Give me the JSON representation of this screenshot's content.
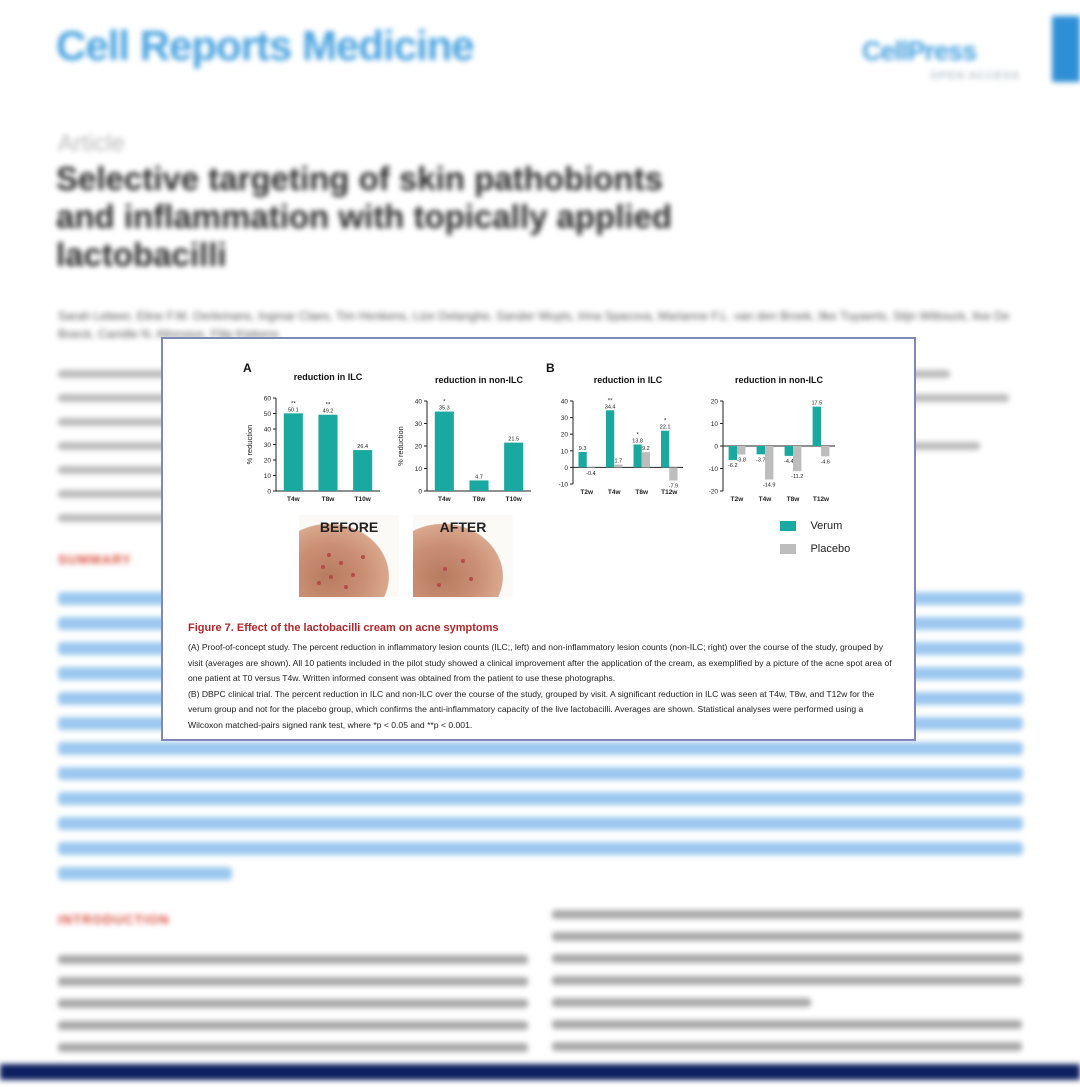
{
  "header": {
    "journal": "Cell Reports Medicine",
    "publisher": "CellPress",
    "publisher_sub": "OPEN ACCESS"
  },
  "article": {
    "type_label": "Article",
    "title": "Selective targeting of skin pathobionts and inflammation with topically applied lactobacilli",
    "authors": "Sarah Lebeer, Eline F.M. Oerlemans, Ingmar Claes, Tim Henkens, Lize Delanghe, Sander Wuyts, Irina Spacova, Marianne F.L. van den Broek, Ilke Tuyaerts, Stijn Wittouck, Ilse De Boeck, Camille N. Allonsius, Filip Kiekens",
    "summary_heading": "SUMMARY",
    "intro_heading": "INTRODUCTION"
  },
  "figure": {
    "panel_a": "A",
    "panel_b": "B",
    "photo_before": "BEFORE",
    "photo_after": "AFTER",
    "caption_title": "Figure 7. Effect of the lactobacilli cream on acne symptoms",
    "caption_a": "(A) Proof-of-concept study. The percent reduction in inflammatory lesion counts (ILC;, left) and non-inflammatory lesion counts (non-ILC; right) over the course of the study, grouped by visit (averages are shown). All 10 patients included in the pilot study showed a clinical improvement after the application of the cream, as exemplified by a picture of the acne spot area of one patient at T0 versus T4w. Written informed consent was obtained from the patient to use these photographs.",
    "caption_b": "(B) DBPC clinical trial. The percent reduction in ILC and non-ILC over the course of the study, grouped by visit. A significant reduction in ILC was seen at T4w, T8w, and T12w for the verum group and not for the placebo group, which confirms the anti-inflammatory capacity of the live lactobacilli. Averages are shown. Statistical analyses were performed using a Wilcoxon matched-pairs signed rank test, where *p < 0.05 and **p < 0.001.",
    "legend": [
      {
        "label": "Verum",
        "color": "#1aa9a0"
      },
      {
        "label": "Placebo",
        "color": "#bdbdbd"
      }
    ]
  },
  "colors": {
    "verum": "#1aa9a0",
    "placebo": "#bdbdbd",
    "caption_title": "#b3262c",
    "journal_blue": "#4aa3df",
    "bottom_bar": "#0d2062"
  },
  "chart_data": [
    {
      "type": "bar",
      "title": "reduction in ILC",
      "ylabel": "% reduction",
      "categories": [
        "T4w",
        "T8w",
        "T10w"
      ],
      "series": [
        {
          "values": [
            50.1,
            49.2,
            26.4
          ]
        }
      ],
      "significance": [
        "**",
        "**",
        ""
      ],
      "ylim": [
        0,
        60
      ],
      "yticks": [
        0,
        10,
        20,
        30,
        40,
        50,
        60
      ]
    },
    {
      "type": "bar",
      "title": "reduction in non-ILC",
      "ylabel": "% reduction",
      "categories": [
        "T4w",
        "T8w",
        "T10w"
      ],
      "series": [
        {
          "values": [
            35.3,
            4.7,
            21.5
          ]
        }
      ],
      "significance": [
        "*",
        "",
        ""
      ],
      "ylim": [
        0,
        40
      ],
      "yticks": [
        0,
        10,
        20,
        30,
        40
      ]
    },
    {
      "type": "bar",
      "title": "reduction in ILC",
      "categories": [
        "T2w",
        "T4w",
        "T8w",
        "T12w"
      ],
      "series": [
        {
          "name": "Verum",
          "values": [
            9.3,
            34.4,
            13.8,
            22.1
          ]
        },
        {
          "name": "Placebo",
          "values": [
            -0.4,
            1.7,
            9.2,
            -7.9
          ]
        }
      ],
      "significance": [
        "",
        "**",
        "*",
        "*"
      ],
      "ylim": [
        -10,
        40
      ],
      "yticks": [
        -10,
        0,
        10,
        20,
        30,
        40
      ]
    },
    {
      "type": "bar",
      "title": "reduction in non-ILC",
      "categories": [
        "T2w",
        "T4w",
        "T8w",
        "T12w"
      ],
      "series": [
        {
          "name": "Verum",
          "values": [
            -6.2,
            -3.7,
            -4.4,
            17.5
          ]
        },
        {
          "name": "Placebo",
          "values": [
            -3.8,
            -14.9,
            -11.2,
            -4.6
          ]
        }
      ],
      "ylim": [
        -20,
        20
      ],
      "yticks": [
        -20,
        -10,
        0,
        10,
        20
      ]
    }
  ]
}
